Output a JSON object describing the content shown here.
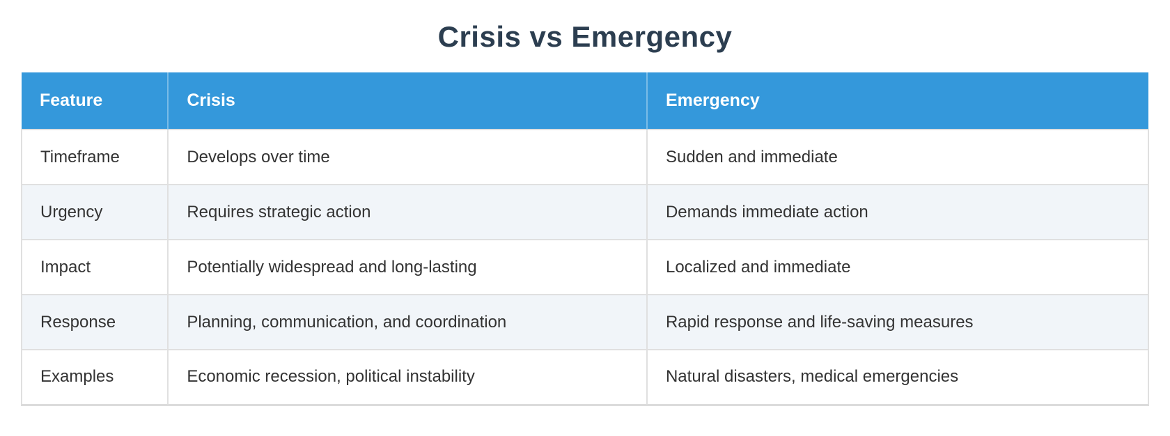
{
  "page": {
    "title": "Crisis vs Emergency"
  },
  "colors": {
    "header_bg": "#3498db",
    "header_text": "#ffffff",
    "title_text": "#2c3e50",
    "row_bg": "#ffffff",
    "row_alt_bg": "#f1f5f9",
    "border": "#e0e0e0",
    "cell_text": "#333333"
  },
  "table": {
    "columns": [
      {
        "key": "feature",
        "label": "Feature"
      },
      {
        "key": "crisis",
        "label": "Crisis"
      },
      {
        "key": "emergency",
        "label": "Emergency"
      }
    ],
    "rows": [
      {
        "feature": "Timeframe",
        "crisis": "Develops over time",
        "emergency": "Sudden and immediate"
      },
      {
        "feature": "Urgency",
        "crisis": "Requires strategic action",
        "emergency": "Demands immediate action"
      },
      {
        "feature": "Impact",
        "crisis": "Potentially widespread and long-lasting",
        "emergency": "Localized and immediate"
      },
      {
        "feature": "Response",
        "crisis": "Planning, communication, and coordination",
        "emergency": "Rapid response and life-saving measures"
      },
      {
        "feature": "Examples",
        "crisis": "Economic recession, political instability",
        "emergency": "Natural disasters, medical emergencies"
      }
    ]
  }
}
